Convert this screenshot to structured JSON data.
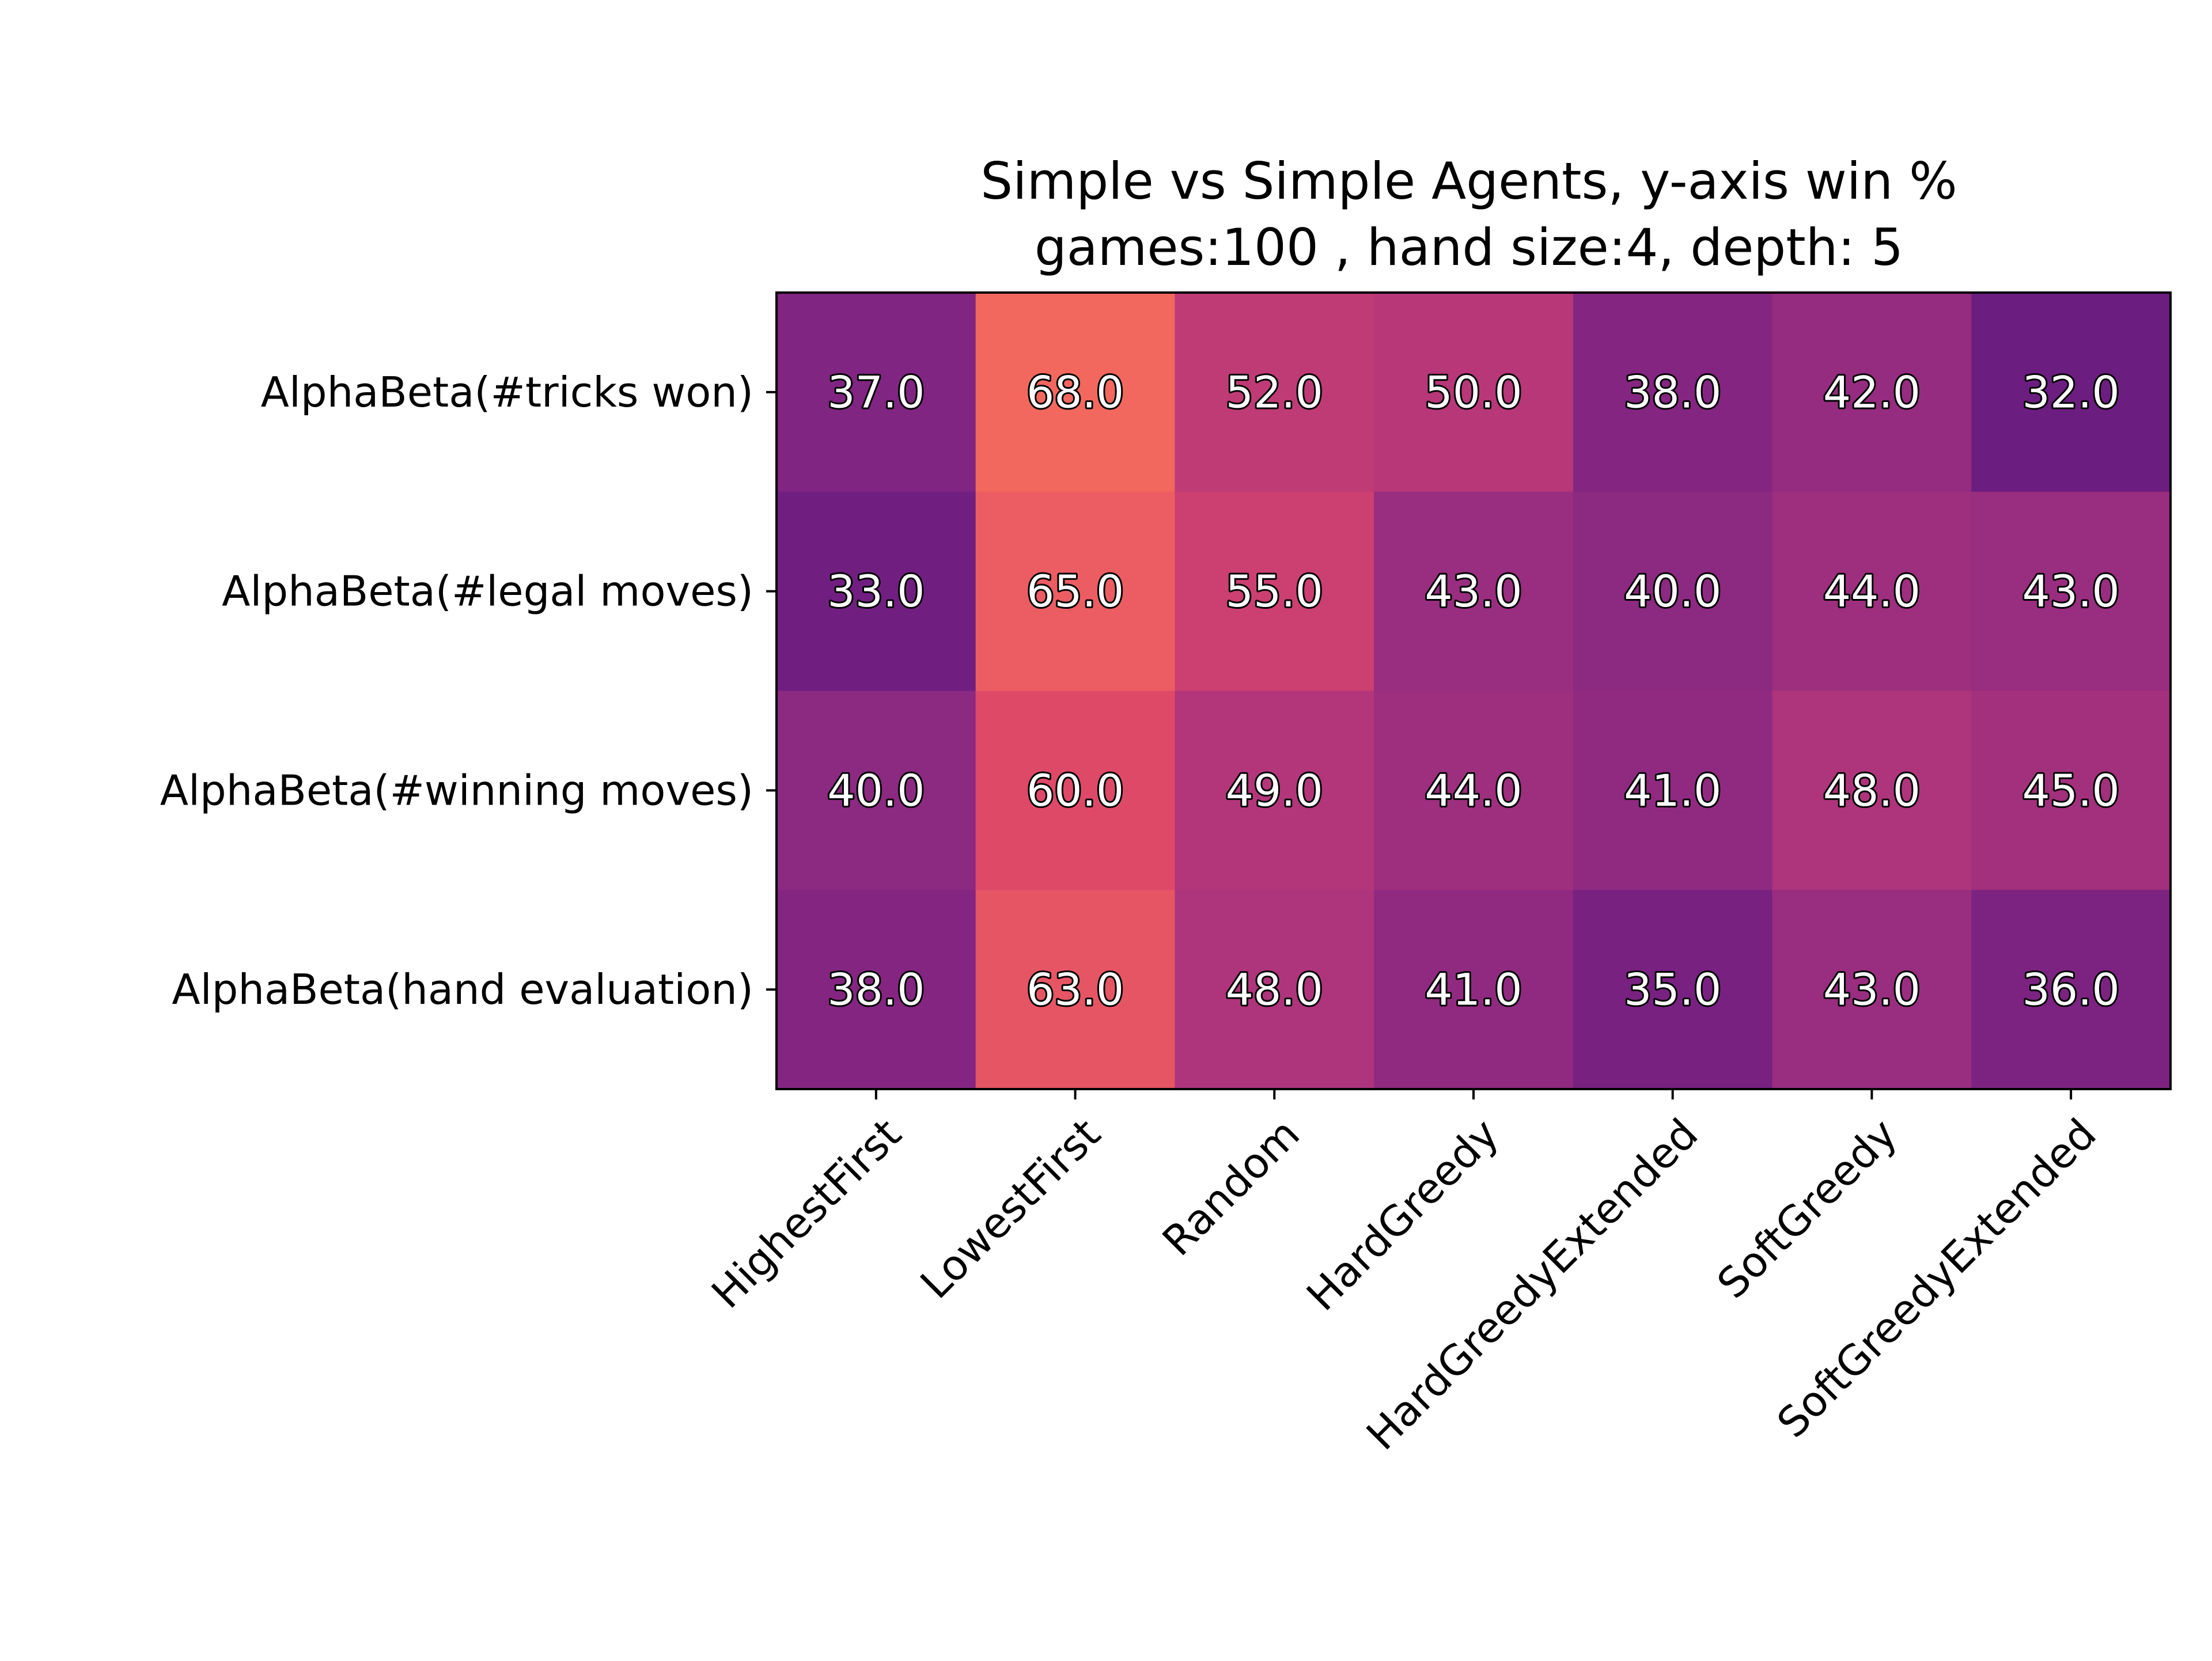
{
  "chart_data": {
    "type": "heatmap",
    "title_lines": [
      "Simple vs Simple Agents, y-axis win %",
      "games:100 , hand size:4, depth: 5"
    ],
    "xlabel": "",
    "ylabel": "",
    "x_categories": [
      "HighestFirst",
      "LowestFirst",
      "Random",
      "HardGreedy",
      "HardGreedyExtended",
      "SoftGreedy",
      "SoftGreedyExtended"
    ],
    "y_categories": [
      "AlphaBeta(#tricks won)",
      "AlphaBeta(#legal moves)",
      "AlphaBeta(#winning moves)",
      "AlphaBeta(hand evaluation)"
    ],
    "values": [
      [
        37.0,
        68.0,
        52.0,
        50.0,
        38.0,
        42.0,
        32.0
      ],
      [
        33.0,
        65.0,
        55.0,
        43.0,
        40.0,
        44.0,
        43.0
      ],
      [
        40.0,
        60.0,
        49.0,
        44.0,
        41.0,
        48.0,
        45.0
      ],
      [
        38.0,
        63.0,
        48.0,
        41.0,
        35.0,
        43.0,
        36.0
      ]
    ],
    "value_labels": [
      [
        "37.0",
        "68.0",
        "52.0",
        "50.0",
        "38.0",
        "42.0",
        "32.0"
      ],
      [
        "33.0",
        "65.0",
        "55.0",
        "43.0",
        "40.0",
        "44.0",
        "43.0"
      ],
      [
        "40.0",
        "60.0",
        "49.0",
        "44.0",
        "41.0",
        "48.0",
        "45.0"
      ],
      [
        "38.0",
        "63.0",
        "48.0",
        "41.0",
        "35.0",
        "43.0",
        "36.0"
      ]
    ],
    "colormap": "magma",
    "color_range": [
      0,
      100
    ],
    "grid": false,
    "legend": "none"
  }
}
